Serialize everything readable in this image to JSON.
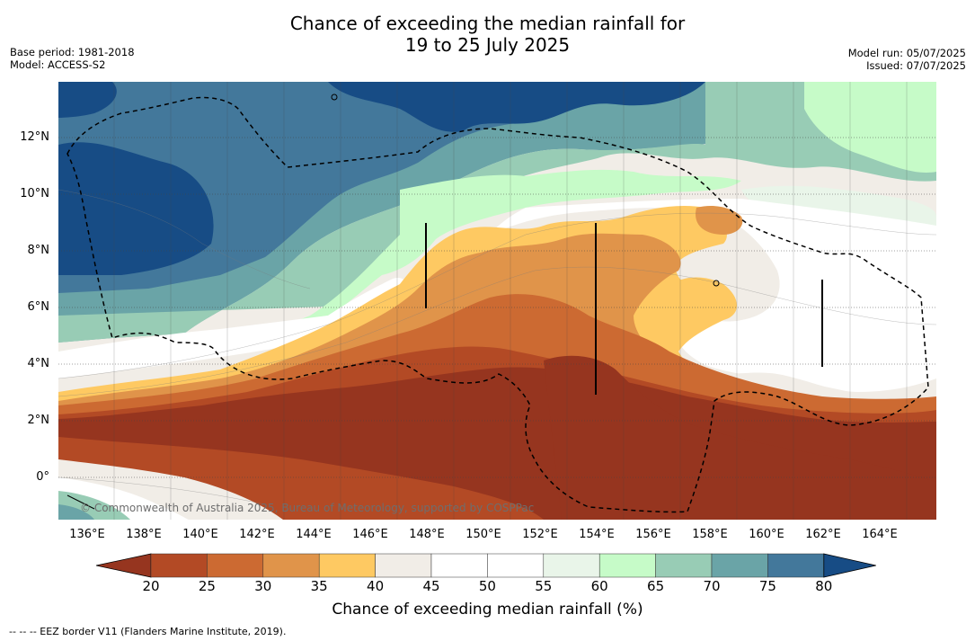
{
  "title": {
    "line1": "Chance of exceeding the median rainfall for",
    "line2": "19 to 25 July 2025"
  },
  "meta_left": {
    "base_period": "Base period: 1981-2018",
    "model": "Model: ACCESS-S2"
  },
  "meta_right": {
    "model_run": "Model run: 05/07/2025",
    "issued": "Issued: 07/07/2025"
  },
  "map": {
    "lat_labels": [
      "12°N",
      "10°N",
      "8°N",
      "6°N",
      "4°N",
      "2°N",
      "0°"
    ],
    "lon_labels": [
      "136°E",
      "138°E",
      "140°E",
      "142°E",
      "144°E",
      "146°E",
      "148°E",
      "150°E",
      "152°E",
      "154°E",
      "156°E",
      "158°E",
      "160°E",
      "162°E",
      "164°E"
    ],
    "copyright": "© Commonwealth of Australia 2025, Bureau of Meteorology, supported by COSPPac"
  },
  "colorbar": {
    "ticks": [
      "20",
      "25",
      "30",
      "35",
      "40",
      "45",
      "50",
      "55",
      "60",
      "65",
      "70",
      "75",
      "80"
    ],
    "colors": [
      "#96351f",
      "#b34a25",
      "#cc6a32",
      "#e0944a",
      "#fec962",
      "#f1ede7",
      "#ffffff",
      "#ffffff",
      "#e9f5e9",
      "#c6fbc8",
      "#98ccb5",
      "#6aa4a7",
      "#43789b"
    ],
    "under_color": "#96351f",
    "over_color": "#174c85",
    "label": "Chance of exceeding median rainfall (%)"
  },
  "legend_note": "--  --  -- EEZ border V11 (Flanders Marine Institute, 2019)."
}
